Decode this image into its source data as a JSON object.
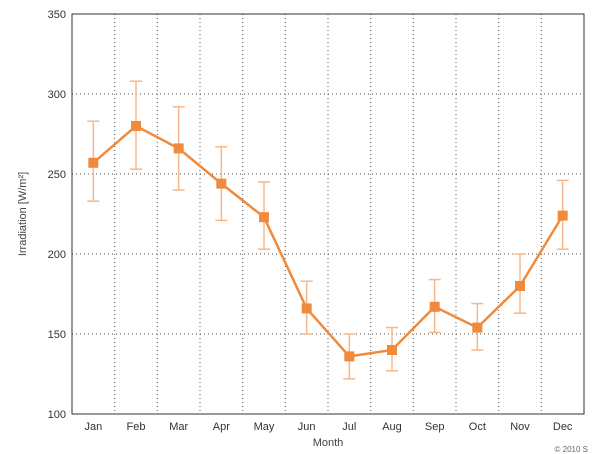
{
  "chart_data": {
    "type": "line",
    "title": "",
    "xlabel": "Month",
    "ylabel": "Irradiation [W/m²]",
    "categories": [
      "Jan",
      "Feb",
      "Mar",
      "Apr",
      "May",
      "Jun",
      "Jul",
      "Aug",
      "Sep",
      "Oct",
      "Nov",
      "Dec"
    ],
    "series": [
      {
        "values": [
          257,
          280,
          266,
          244,
          223,
          166,
          136,
          140,
          167,
          154,
          180,
          224
        ],
        "err_low": [
          233,
          253,
          240,
          221,
          203,
          150,
          122,
          127,
          151,
          140,
          163,
          203
        ],
        "err_high": [
          283,
          308,
          292,
          267,
          245,
          183,
          150,
          154,
          184,
          169,
          200,
          246
        ]
      }
    ],
    "ylim": [
      100,
      350
    ],
    "yticks": [
      100,
      150,
      200,
      250,
      300,
      350
    ],
    "grid": true,
    "line_color": "#f08a3c",
    "error_color": "#f5b88a"
  },
  "footer": {
    "copyright": "© 2010 S"
  }
}
